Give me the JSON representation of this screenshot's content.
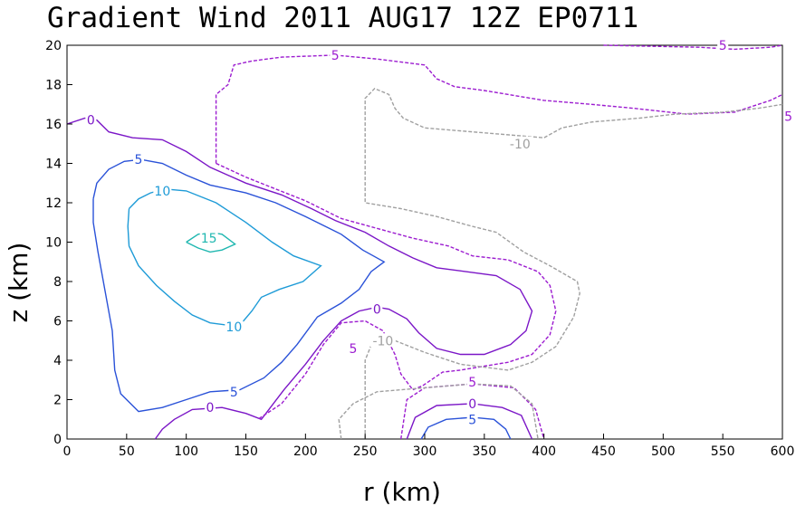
{
  "chart_data": {
    "type": "contour",
    "title": "Gradient Wind 2011 AUG17 12Z  EP0711",
    "xlabel": "r (km)",
    "ylabel": "z (km)",
    "xlim": [
      0,
      600
    ],
    "ylim": [
      0,
      20
    ],
    "xticks": [
      0,
      50,
      100,
      150,
      200,
      250,
      300,
      350,
      400,
      450,
      500,
      550,
      600
    ],
    "yticks": [
      0,
      2,
      4,
      6,
      8,
      10,
      12,
      14,
      16,
      18,
      20
    ],
    "grid": false,
    "contours": [
      {
        "level": "15",
        "color": "#1fb7b0",
        "dashed": false,
        "label_at": [
          [
            119,
            10.2
          ]
        ],
        "points": [
          [
            100,
            10.0
          ],
          [
            110,
            10.4
          ],
          [
            120,
            10.5
          ],
          [
            130,
            10.4
          ],
          [
            141,
            9.9
          ],
          [
            130,
            9.6
          ],
          [
            120,
            9.5
          ],
          [
            110,
            9.7
          ],
          [
            100,
            10.0
          ]
        ]
      },
      {
        "level": "10",
        "color": "#1e9bd7",
        "dashed": false,
        "label_at": [
          [
            80,
            12.6
          ],
          [
            140,
            5.7
          ]
        ],
        "points": [
          [
            52,
            11.7
          ],
          [
            60,
            12.2
          ],
          [
            70,
            12.5
          ],
          [
            82,
            12.7
          ],
          [
            100,
            12.6
          ],
          [
            125,
            12.0
          ],
          [
            150,
            11.0
          ],
          [
            172,
            10.0
          ],
          [
            190,
            9.3
          ],
          [
            213,
            8.8
          ],
          [
            198,
            8.0
          ],
          [
            178,
            7.6
          ],
          [
            163,
            7.2
          ],
          [
            155,
            6.5
          ],
          [
            148,
            6.0
          ],
          [
            133,
            5.8
          ],
          [
            120,
            5.9
          ],
          [
            105,
            6.3
          ],
          [
            90,
            7.0
          ],
          [
            75,
            7.8
          ],
          [
            60,
            8.8
          ],
          [
            52,
            9.8
          ],
          [
            51,
            10.8
          ],
          [
            52,
            11.7
          ]
        ]
      },
      {
        "level": "5",
        "color": "#2a52d8",
        "dashed": false,
        "label_at": [
          [
            60,
            14.2
          ],
          [
            140,
            2.4
          ],
          [
            340,
            1.0
          ]
        ],
        "points": [
          [
            22,
            12.2
          ],
          [
            25,
            13.0
          ],
          [
            35,
            13.7
          ],
          [
            48,
            14.1
          ],
          [
            62,
            14.2
          ],
          [
            80,
            14.0
          ],
          [
            100,
            13.4
          ],
          [
            120,
            12.9
          ],
          [
            150,
            12.5
          ],
          [
            175,
            12.0
          ],
          [
            200,
            11.3
          ],
          [
            230,
            10.4
          ],
          [
            248,
            9.6
          ],
          [
            266,
            9.0
          ],
          [
            255,
            8.5
          ],
          [
            245,
            7.6
          ],
          [
            230,
            6.9
          ],
          [
            210,
            6.2
          ],
          [
            193,
            4.8
          ],
          [
            180,
            3.9
          ],
          [
            165,
            3.1
          ],
          [
            145,
            2.5
          ],
          [
            120,
            2.4
          ],
          [
            100,
            2.0
          ],
          [
            80,
            1.6
          ],
          [
            60,
            1.4
          ],
          [
            45,
            2.3
          ],
          [
            40,
            3.5
          ],
          [
            38,
            5.5
          ],
          [
            32,
            7.5
          ],
          [
            26,
            9.5
          ],
          [
            22,
            11.0
          ],
          [
            22,
            12.2
          ]
        ]
      },
      {
        "level": "5",
        "color": "#2a52d8",
        "dashed": false,
        "points": [
          [
            297,
            0.0
          ],
          [
            303,
            0.6
          ],
          [
            318,
            1.0
          ],
          [
            340,
            1.1
          ],
          [
            358,
            1.0
          ],
          [
            368,
            0.5
          ],
          [
            372,
            0.0
          ]
        ]
      },
      {
        "level": "0",
        "color": "#7b16c7",
        "dashed": false,
        "label_at": [
          [
            20,
            16.2
          ],
          [
            120,
            1.6
          ],
          [
            260,
            6.6
          ],
          [
            340,
            1.8
          ]
        ],
        "points": [
          [
            0,
            16.0
          ],
          [
            15,
            16.3
          ],
          [
            25,
            16.2
          ],
          [
            35,
            15.6
          ],
          [
            55,
            15.3
          ],
          [
            80,
            15.2
          ],
          [
            100,
            14.6
          ],
          [
            120,
            13.8
          ],
          [
            150,
            13.0
          ],
          [
            180,
            12.4
          ],
          [
            205,
            11.7
          ],
          [
            225,
            11.1
          ],
          [
            250,
            10.5
          ],
          [
            270,
            9.8
          ],
          [
            290,
            9.2
          ],
          [
            310,
            8.7
          ],
          [
            360,
            8.3
          ],
          [
            380,
            7.6
          ],
          [
            390,
            6.5
          ],
          [
            385,
            5.5
          ],
          [
            372,
            4.8
          ],
          [
            350,
            4.3
          ],
          [
            330,
            4.3
          ],
          [
            310,
            4.6
          ],
          [
            295,
            5.4
          ],
          [
            285,
            6.1
          ],
          [
            270,
            6.6
          ],
          [
            260,
            6.7
          ],
          [
            245,
            6.5
          ],
          [
            230,
            6.0
          ],
          [
            215,
            5.0
          ],
          [
            200,
            3.8
          ],
          [
            182,
            2.5
          ],
          [
            163,
            1.0
          ],
          [
            150,
            1.3
          ],
          [
            130,
            1.6
          ],
          [
            105,
            1.5
          ],
          [
            90,
            1.0
          ],
          [
            80,
            0.5
          ],
          [
            74,
            0.0
          ]
        ]
      },
      {
        "level": "0",
        "color": "#7b16c7",
        "dashed": false,
        "points": [
          [
            285,
            0.0
          ],
          [
            292,
            1.1
          ],
          [
            310,
            1.7
          ],
          [
            340,
            1.8
          ],
          [
            365,
            1.6
          ],
          [
            381,
            1.2
          ],
          [
            390,
            0.0
          ]
        ]
      },
      {
        "level": "5",
        "color": "#9c1cd0",
        "dashed": true,
        "label_at": [
          [
            225,
            19.5
          ],
          [
            605,
            16.4
          ],
          [
            550,
            20.0
          ],
          [
            240,
            4.6
          ],
          [
            340,
            2.9
          ]
        ],
        "points": [
          [
            125,
            14.0
          ],
          [
            125,
            17.5
          ],
          [
            135,
            18.0
          ],
          [
            140,
            19.0
          ],
          [
            155,
            19.2
          ],
          [
            180,
            19.4
          ],
          [
            225,
            19.5
          ],
          [
            260,
            19.3
          ],
          [
            300,
            19.0
          ],
          [
            310,
            18.3
          ],
          [
            325,
            17.9
          ],
          [
            350,
            17.7
          ],
          [
            380,
            17.4
          ],
          [
            400,
            17.2
          ],
          [
            440,
            17.0
          ],
          [
            475,
            16.8
          ],
          [
            520,
            16.5
          ],
          [
            560,
            16.6
          ],
          [
            590,
            17.2
          ],
          [
            600,
            17.5
          ]
        ]
      },
      {
        "level": "5",
        "color": "#9c1cd0",
        "dashed": true,
        "points": [
          [
            125,
            14.0
          ],
          [
            150,
            13.3
          ],
          [
            175,
            12.7
          ],
          [
            200,
            12.1
          ],
          [
            230,
            11.2
          ],
          [
            260,
            10.7
          ],
          [
            290,
            10.2
          ],
          [
            320,
            9.8
          ],
          [
            340,
            9.3
          ],
          [
            370,
            9.1
          ],
          [
            395,
            8.5
          ],
          [
            405,
            7.8
          ],
          [
            410,
            6.5
          ],
          [
            405,
            5.3
          ],
          [
            390,
            4.3
          ],
          [
            370,
            3.9
          ],
          [
            350,
            3.7
          ],
          [
            330,
            3.5
          ],
          [
            315,
            3.4
          ],
          [
            298,
            2.7
          ],
          [
            290,
            2.5
          ],
          [
            280,
            3.3
          ],
          [
            275,
            4.3
          ],
          [
            265,
            5.5
          ],
          [
            250,
            6.0
          ],
          [
            230,
            5.9
          ],
          [
            215,
            4.8
          ],
          [
            200,
            3.3
          ],
          [
            180,
            1.8
          ],
          [
            160,
            1.0
          ]
        ]
      },
      {
        "level": "5",
        "color": "#9c1cd0",
        "dashed": true,
        "points": [
          [
            280,
            0.0
          ],
          [
            285,
            2.0
          ],
          [
            300,
            2.6
          ],
          [
            340,
            2.8
          ],
          [
            375,
            2.6
          ],
          [
            393,
            1.5
          ],
          [
            400,
            0.0
          ]
        ]
      },
      {
        "level": "5",
        "color": "#9c1cd0",
        "dashed": true,
        "points": [
          [
            450,
            20.0
          ],
          [
            530,
            19.9
          ],
          [
            560,
            19.8
          ],
          [
            590,
            19.9
          ],
          [
            600,
            20.0
          ]
        ]
      },
      {
        "level": "-10",
        "color": "#a0a0a0",
        "dashed": true,
        "label_at": [
          [
            380,
            15.0
          ],
          [
            265,
            5.0
          ]
        ],
        "points": [
          [
            250,
            0.0
          ],
          [
            250,
            4.0
          ],
          [
            258,
            5.2
          ],
          [
            275,
            5.0
          ],
          [
            300,
            4.4
          ],
          [
            330,
            3.8
          ],
          [
            370,
            3.5
          ],
          [
            390,
            3.9
          ],
          [
            410,
            4.7
          ],
          [
            425,
            6.2
          ],
          [
            430,
            7.4
          ],
          [
            428,
            8.0
          ],
          [
            405,
            8.8
          ],
          [
            383,
            9.5
          ],
          [
            360,
            10.5
          ],
          [
            340,
            10.8
          ],
          [
            310,
            11.3
          ],
          [
            280,
            11.7
          ],
          [
            250,
            12.0
          ],
          [
            250,
            17.3
          ],
          [
            258,
            17.8
          ],
          [
            270,
            17.5
          ],
          [
            275,
            16.8
          ],
          [
            282,
            16.3
          ],
          [
            300,
            15.8
          ],
          [
            400,
            15.3
          ],
          [
            415,
            15.8
          ],
          [
            440,
            16.1
          ],
          [
            480,
            16.3
          ],
          [
            510,
            16.5
          ],
          [
            550,
            16.6
          ],
          [
            580,
            16.8
          ],
          [
            600,
            17.0
          ]
        ]
      },
      {
        "level": "-10",
        "color": "#a0a0a0",
        "dashed": true,
        "points": [
          [
            230,
            0.0
          ],
          [
            228,
            1.0
          ],
          [
            240,
            1.8
          ],
          [
            260,
            2.4
          ],
          [
            340,
            2.8
          ],
          [
            372,
            2.7
          ],
          [
            390,
            1.8
          ],
          [
            395,
            0.0
          ]
        ]
      }
    ]
  }
}
